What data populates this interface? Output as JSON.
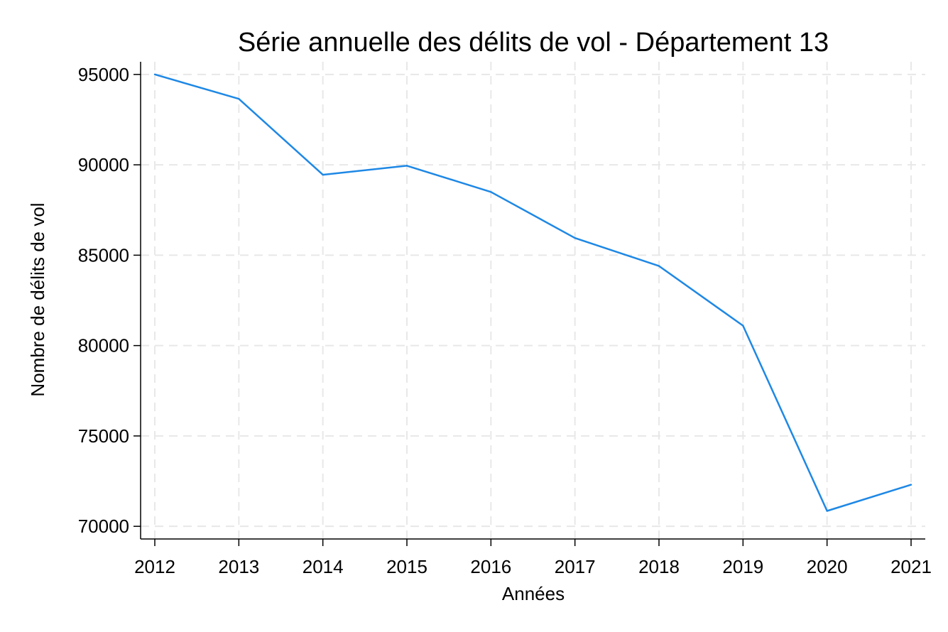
{
  "chart_data": {
    "type": "line",
    "title": "Série annuelle des délits de vol - Département 13",
    "xlabel": "Années",
    "ylabel": "Nombre de délits de vol",
    "x": [
      2012,
      2013,
      2014,
      2015,
      2016,
      2017,
      2018,
      2019,
      2020,
      2021
    ],
    "xticks": [
      "2012",
      "2013",
      "2014",
      "2015",
      "2016",
      "2017",
      "2018",
      "2019",
      "2020",
      "2021"
    ],
    "yticks": [
      "70000",
      "75000",
      "80000",
      "85000",
      "90000",
      "95000"
    ],
    "ylim": [
      69300,
      95700
    ],
    "grid": true,
    "series": [
      {
        "color": "#1e88e5",
        "values": [
          95000,
          93650,
          89450,
          89950,
          88500,
          85950,
          84400,
          81100,
          70850,
          72300
        ]
      }
    ]
  }
}
